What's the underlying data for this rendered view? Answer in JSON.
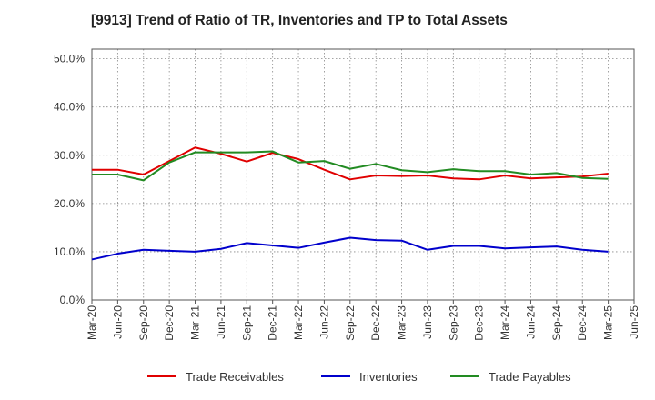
{
  "chart_data": {
    "type": "line",
    "title": "[9913]  Trend of Ratio of TR, Inventories and TP to Total Assets",
    "xlabel": "",
    "ylabel": "",
    "ylim": [
      0,
      52
    ],
    "yticks": [
      "0.0%",
      "10.0%",
      "20.0%",
      "30.0%",
      "40.0%",
      "50.0%"
    ],
    "ytick_values": [
      0,
      10,
      20,
      30,
      40,
      50
    ],
    "x_tick_labels": [
      "Mar-20",
      "Jun-20",
      "Sep-20",
      "Dec-20",
      "Mar-21",
      "Jun-21",
      "Sep-21",
      "Dec-21",
      "Mar-22",
      "Jun-22",
      "Sep-22",
      "Dec-22",
      "Mar-23",
      "Jun-23",
      "Sep-23",
      "Dec-23",
      "Mar-24",
      "Jun-24",
      "Sep-24",
      "Dec-24",
      "Mar-25",
      "Jun-25"
    ],
    "categories": [
      "Mar-20",
      "Jun-20",
      "Sep-20",
      "Dec-20",
      "Mar-21",
      "Jun-21",
      "Sep-21",
      "Dec-21",
      "Mar-22",
      "Jun-22",
      "Sep-22",
      "Dec-22",
      "Mar-23",
      "Jun-23",
      "Sep-23",
      "Dec-23",
      "Mar-24",
      "Jun-24",
      "Sep-24",
      "Dec-24",
      "Mar-25"
    ],
    "grid": true,
    "legend_position": "bottom",
    "series": [
      {
        "name": "Trade Receivables",
        "color": "#e00000",
        "values": [
          27.0,
          27.0,
          26.0,
          28.8,
          31.6,
          30.3,
          28.7,
          30.5,
          29.2,
          27.0,
          25.0,
          25.8,
          25.7,
          25.8,
          25.2,
          25.0,
          25.8,
          25.2,
          25.4,
          25.6,
          26.2
        ]
      },
      {
        "name": "Inventories",
        "color": "#0000cc",
        "values": [
          8.4,
          9.6,
          10.4,
          10.2,
          10.0,
          10.6,
          11.8,
          11.3,
          10.8,
          11.9,
          12.9,
          12.4,
          12.3,
          10.4,
          11.2,
          11.2,
          10.7,
          10.9,
          11.1,
          10.4,
          10.0
        ]
      },
      {
        "name": "Trade Payables",
        "color": "#228b22",
        "values": [
          26.0,
          26.0,
          24.8,
          28.5,
          30.6,
          30.6,
          30.6,
          30.8,
          28.5,
          28.8,
          27.2,
          28.2,
          26.9,
          26.5,
          27.1,
          26.7,
          26.7,
          26.0,
          26.3,
          25.3,
          25.1
        ]
      }
    ]
  }
}
